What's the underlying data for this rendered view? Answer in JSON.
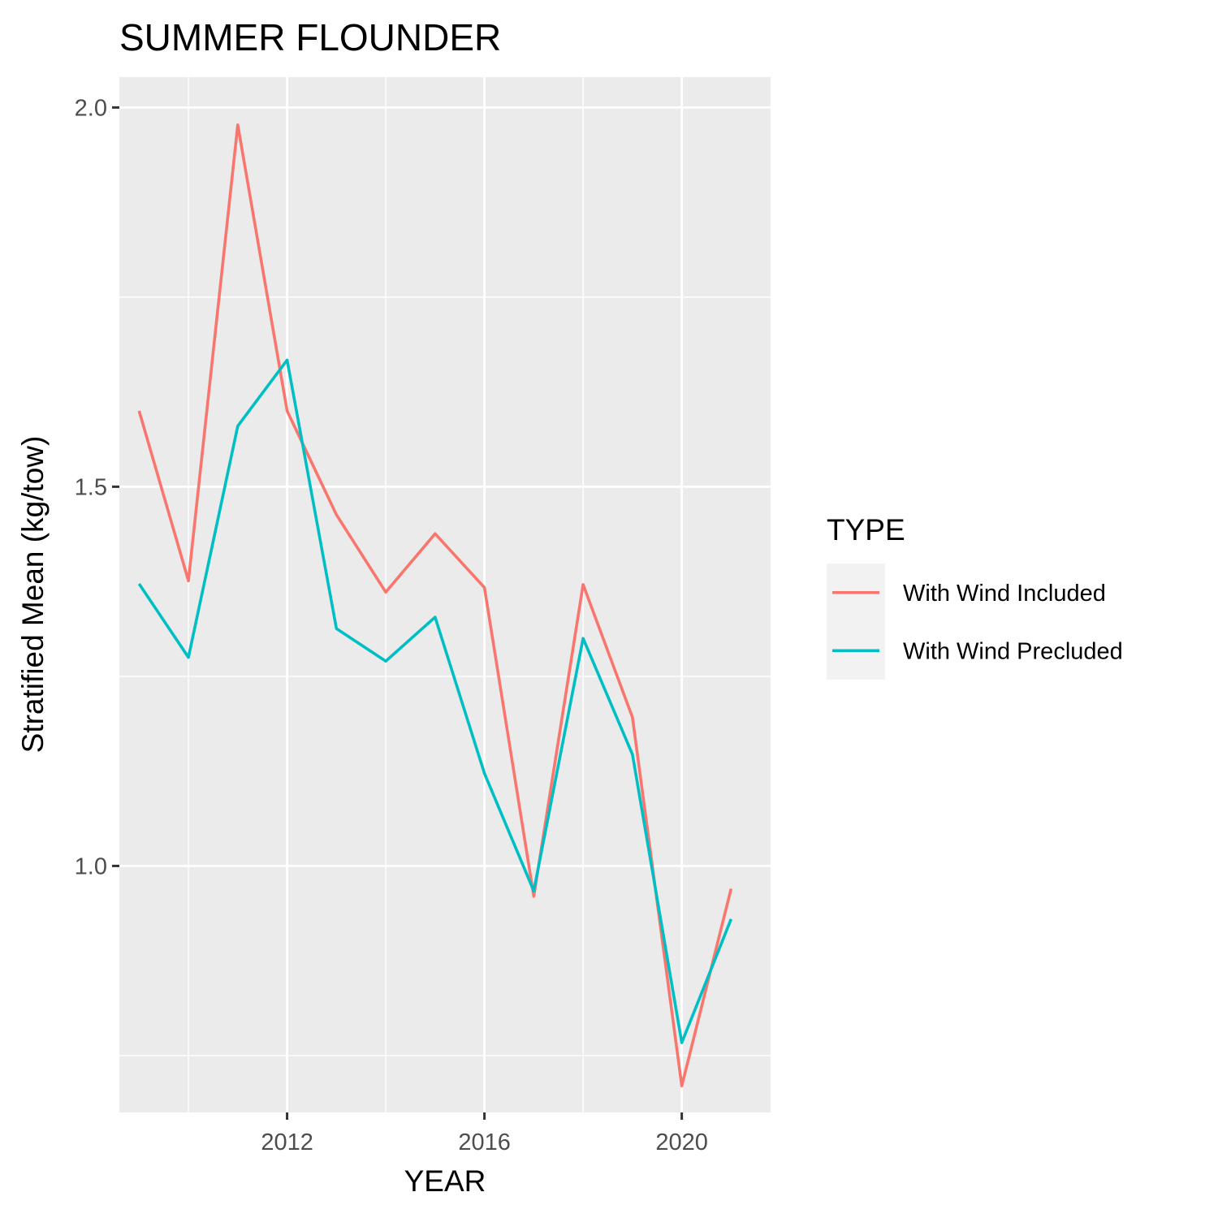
{
  "chart_data": {
    "type": "line",
    "title": "SUMMER FLOUNDER",
    "xlabel": "YEAR",
    "ylabel": "Stratified Mean (kg/tow)",
    "x": [
      2009,
      2010,
      2011,
      2012,
      2013,
      2014,
      2015,
      2016,
      2017,
      2018,
      2019,
      2020,
      2021
    ],
    "xlim": [
      2008.6,
      2021.8
    ],
    "ylim": [
      0.675,
      2.04
    ],
    "x_ticks": [
      2012,
      2016,
      2020
    ],
    "x_tick_labels": [
      "2012",
      "2016",
      "2020"
    ],
    "y_ticks": [
      1.0,
      1.5,
      2.0
    ],
    "y_tick_labels": [
      "1.0",
      "1.5",
      "2.0"
    ],
    "y_minor_ticks": [
      0.75,
      1.25,
      1.75
    ],
    "x_minor_ticks": [
      2010,
      2014,
      2018
    ],
    "grid": true,
    "legend": {
      "title": "TYPE",
      "position": "right"
    },
    "series": [
      {
        "name": "With Wind Included",
        "color": "#F8766D",
        "values": [
          1.6,
          1.376,
          1.977,
          1.6,
          1.463,
          1.361,
          1.438,
          1.367,
          0.96,
          1.371,
          1.196,
          0.71,
          0.97
        ]
      },
      {
        "name": "With Wind Precluded",
        "color": "#00BFC4",
        "values": [
          1.372,
          1.275,
          1.58,
          1.667,
          1.313,
          1.27,
          1.328,
          1.122,
          0.967,
          1.3,
          1.147,
          0.767,
          0.93
        ]
      }
    ],
    "colors": {
      "panel_background": "#EBEBEB",
      "grid_line": "#FFFFFF",
      "legend_key_background": "#F2F2F2",
      "tick_color": "#333333"
    }
  }
}
